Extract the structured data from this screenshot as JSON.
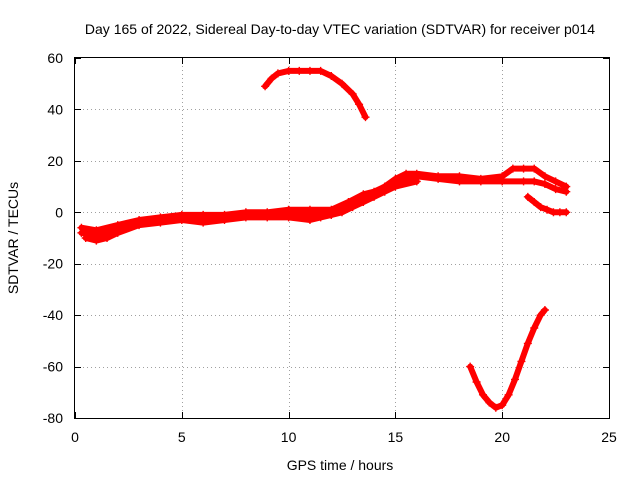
{
  "chart_data": {
    "type": "scatter",
    "title": "Day 165 of 2022, Sidereal Day-to-day VTEC variation (SDTVAR) for receiver p014",
    "xlabel": "GPS time / hours",
    "ylabel": "SDTVAR / TECUs",
    "xlim": [
      0,
      25
    ],
    "ylim": [
      -80,
      60
    ],
    "xticks": [
      0,
      5,
      10,
      15,
      20,
      25
    ],
    "yticks": [
      -80,
      -60,
      -40,
      -20,
      0,
      20,
      40,
      60
    ],
    "grid": true,
    "marker": "+",
    "series_color": "#ff0000",
    "series": [
      {
        "name": "main band upper",
        "x": [
          0.3,
          1.0,
          2.0,
          3.0,
          4.0,
          5.0,
          6.0,
          7.0,
          8.0,
          9.0,
          10.0,
          11.0,
          12.0,
          12.8,
          13.5,
          14.0,
          14.5,
          15.0,
          15.5,
          16.0,
          17.0,
          18.0,
          19.0,
          20.0,
          20.5,
          21.0,
          21.5,
          22.0,
          22.5,
          23.0
        ],
        "y": [
          -6,
          -7,
          -5,
          -3,
          -2,
          -1,
          -1,
          -1,
          0,
          0,
          1,
          1,
          1,
          4,
          7,
          8,
          10,
          13,
          15,
          15,
          14,
          14,
          13,
          14,
          17,
          17,
          17,
          14,
          12,
          10
        ]
      },
      {
        "name": "main band middle",
        "x": [
          0.3,
          1.0,
          2.0,
          3.0,
          4.0,
          5.0,
          6.0,
          7.0,
          8.0,
          9.0,
          10.0,
          11.0,
          12.0,
          12.5,
          13.0,
          13.5,
          14.0,
          14.5,
          15.0,
          15.5,
          16.0,
          17.0,
          18.0,
          19.0,
          20.0,
          21.0,
          21.5,
          22.0,
          22.5,
          23.0
        ],
        "y": [
          -8,
          -9,
          -7,
          -4,
          -3,
          -2,
          -2,
          -2,
          -1,
          -1,
          -1,
          -1,
          -1,
          1,
          3,
          5,
          7,
          9,
          11,
          13,
          14,
          13,
          12,
          12,
          12,
          12,
          12,
          11,
          9,
          8
        ]
      },
      {
        "name": "main band lower",
        "x": [
          0.5,
          1.0,
          1.5,
          2.0,
          3.0,
          4.0,
          5.0,
          6.0,
          7.0,
          8.0,
          9.0,
          10.0,
          11.0,
          11.5,
          12.0,
          12.5,
          13.0,
          13.5,
          14.0,
          14.5,
          15.0,
          16.0
        ],
        "y": [
          -10,
          -11,
          -10,
          -8,
          -5,
          -4,
          -3,
          -4,
          -3,
          -2,
          -2,
          -2,
          -3,
          -2,
          -1,
          0,
          2,
          4,
          6,
          8,
          10,
          12
        ]
      },
      {
        "name": "upper arc",
        "x": [
          8.9,
          9.2,
          9.5,
          10.0,
          10.5,
          11.0,
          11.5,
          12.0,
          12.5,
          13.0,
          13.3,
          13.6
        ],
        "y": [
          49,
          52,
          54,
          55,
          55,
          55,
          55,
          53,
          50,
          46,
          42,
          37
        ]
      },
      {
        "name": "lower dip",
        "x": [
          18.5,
          18.8,
          19.1,
          19.4,
          19.7,
          20.0,
          20.3,
          20.6,
          20.9,
          21.2,
          21.5,
          21.8,
          22.0
        ],
        "y": [
          -60,
          -66,
          -71,
          -74,
          -76,
          -75,
          -71,
          -65,
          -58,
          -51,
          -45,
          -40,
          -38
        ]
      },
      {
        "name": "late segment",
        "x": [
          21.2,
          21.5,
          21.8,
          22.1,
          22.4,
          22.7,
          23.0
        ],
        "y": [
          6,
          4,
          2,
          1,
          0,
          0,
          0
        ]
      }
    ]
  }
}
